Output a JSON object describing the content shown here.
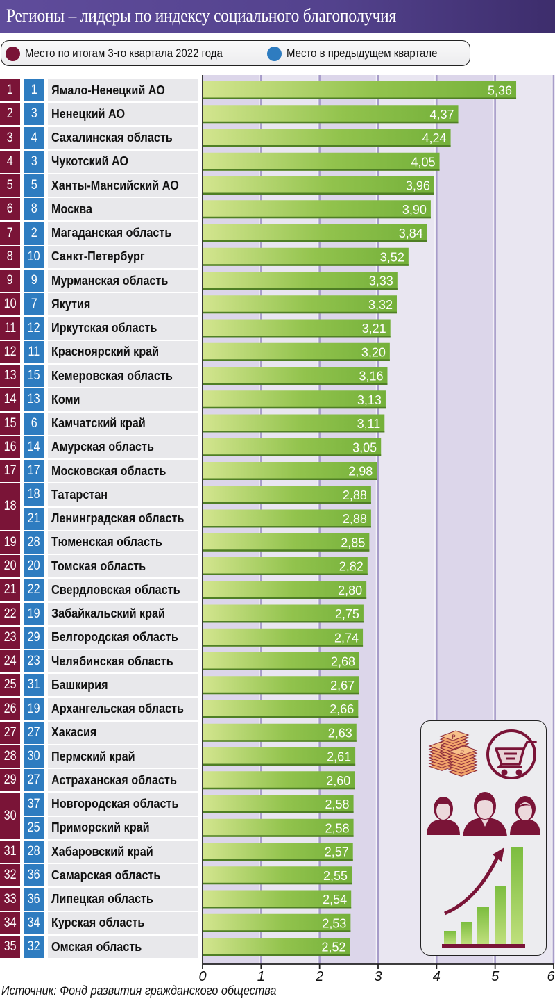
{
  "header": {
    "title": "Регионы – лидеры по индексу социального благополучия"
  },
  "legend": {
    "items": [
      {
        "label": "Место по итогам 3-го квартала 2022 года",
        "color": "#7a1437"
      },
      {
        "label": "Место в предыдущем квартале",
        "color": "#2e7cc0"
      }
    ]
  },
  "colors": {
    "rank": "#7a1437",
    "prev_rank": "#2e7cc0",
    "bar_start": "#d3e58f",
    "bar_end": "#74b03a",
    "bar_edge": "#4f7f25",
    "band_dark": "#dcd6ea",
    "band_light": "#e9e6f1",
    "grid_line": "#a79cc9"
  },
  "chart_data": {
    "type": "bar",
    "orientation": "horizontal",
    "title": "Регионы – лидеры по индексу социального благополучия",
    "xlabel": "",
    "ylabel": "",
    "xlim": [
      0,
      6
    ],
    "x_ticks": [
      "0",
      "1",
      "2",
      "3",
      "4",
      "5",
      "6"
    ],
    "grid": true,
    "legend_placement": "top-left",
    "categories": [
      "Ямало-Ненецкий АО",
      "Ненецкий АО",
      "Сахалинская область",
      "Чукотский АО",
      "Ханты-Мансийский АО",
      "Москва",
      "Магаданская область",
      "Санкт-Петербург",
      "Мурманская область",
      "Якутия",
      "Иркутская область",
      "Красноярский край",
      "Кемеровская область",
      "Коми",
      "Камчатский край",
      "Амурская область",
      "Московская область",
      "Татарстан",
      "Ленинградская область",
      "Тюменская область",
      "Томская область",
      "Свердловская область",
      "Забайкальский край",
      "Белгородская область",
      "Челябинская область",
      "Башкирия",
      "Архангельская область",
      "Хакасия",
      "Пермский край",
      "Астраханская область",
      "Новгородская область",
      "Приморский край",
      "Хабаровский край",
      "Самарская область",
      "Липецкая область",
      "Курская область",
      "Омская область"
    ],
    "values": [
      5.36,
      4.37,
      4.24,
      4.05,
      3.96,
      3.9,
      3.84,
      3.52,
      3.33,
      3.32,
      3.21,
      3.2,
      3.16,
      3.13,
      3.11,
      3.05,
      2.98,
      2.88,
      2.88,
      2.85,
      2.82,
      2.8,
      2.75,
      2.74,
      2.68,
      2.67,
      2.66,
      2.63,
      2.61,
      2.6,
      2.58,
      2.58,
      2.57,
      2.55,
      2.54,
      2.53,
      2.52
    ],
    "value_labels": [
      "5,36",
      "4,37",
      "4,24",
      "4,05",
      "3,96",
      "3,90",
      "3,84",
      "3,52",
      "3,33",
      "3,32",
      "3,21",
      "3,20",
      "3,16",
      "3,13",
      "3,11",
      "3,05",
      "2,98",
      "2,88",
      "2,88",
      "2,85",
      "2,82",
      "2,80",
      "2,75",
      "2,74",
      "2,68",
      "2,67",
      "2,66",
      "2,63",
      "2,61",
      "2,60",
      "2,58",
      "2,58",
      "2,57",
      "2,55",
      "2,54",
      "2,53",
      "2,52"
    ],
    "rank_current": [
      "1",
      "2",
      "3",
      "4",
      "5",
      "6",
      "7",
      "8",
      "9",
      "10",
      "11",
      "12",
      "13",
      "14",
      "15",
      "16",
      "17",
      "18",
      "18",
      "19",
      "20",
      "21",
      "22",
      "23",
      "24",
      "25",
      "26",
      "27",
      "28",
      "29",
      "30",
      "30",
      "31",
      "32",
      "33",
      "34",
      "35"
    ],
    "rank_previous": [
      "1",
      "3",
      "4",
      "3",
      "5",
      "8",
      "2",
      "10",
      "9",
      "7",
      "12",
      "11",
      "15",
      "13",
      "6",
      "14",
      "17",
      "18",
      "21",
      "28",
      "20",
      "22",
      "19",
      "29",
      "23",
      "31",
      "19",
      "27",
      "30",
      "27",
      "37",
      "25",
      "28",
      "36",
      "36",
      "34",
      "32"
    ]
  },
  "source": "Источник: Фонд развития гражданского общества",
  "illustration": {
    "icons": [
      "ruble-money-stack-icon",
      "shopping-cart-icon",
      "people-group-icon",
      "growth-bar-chart-icon"
    ]
  }
}
